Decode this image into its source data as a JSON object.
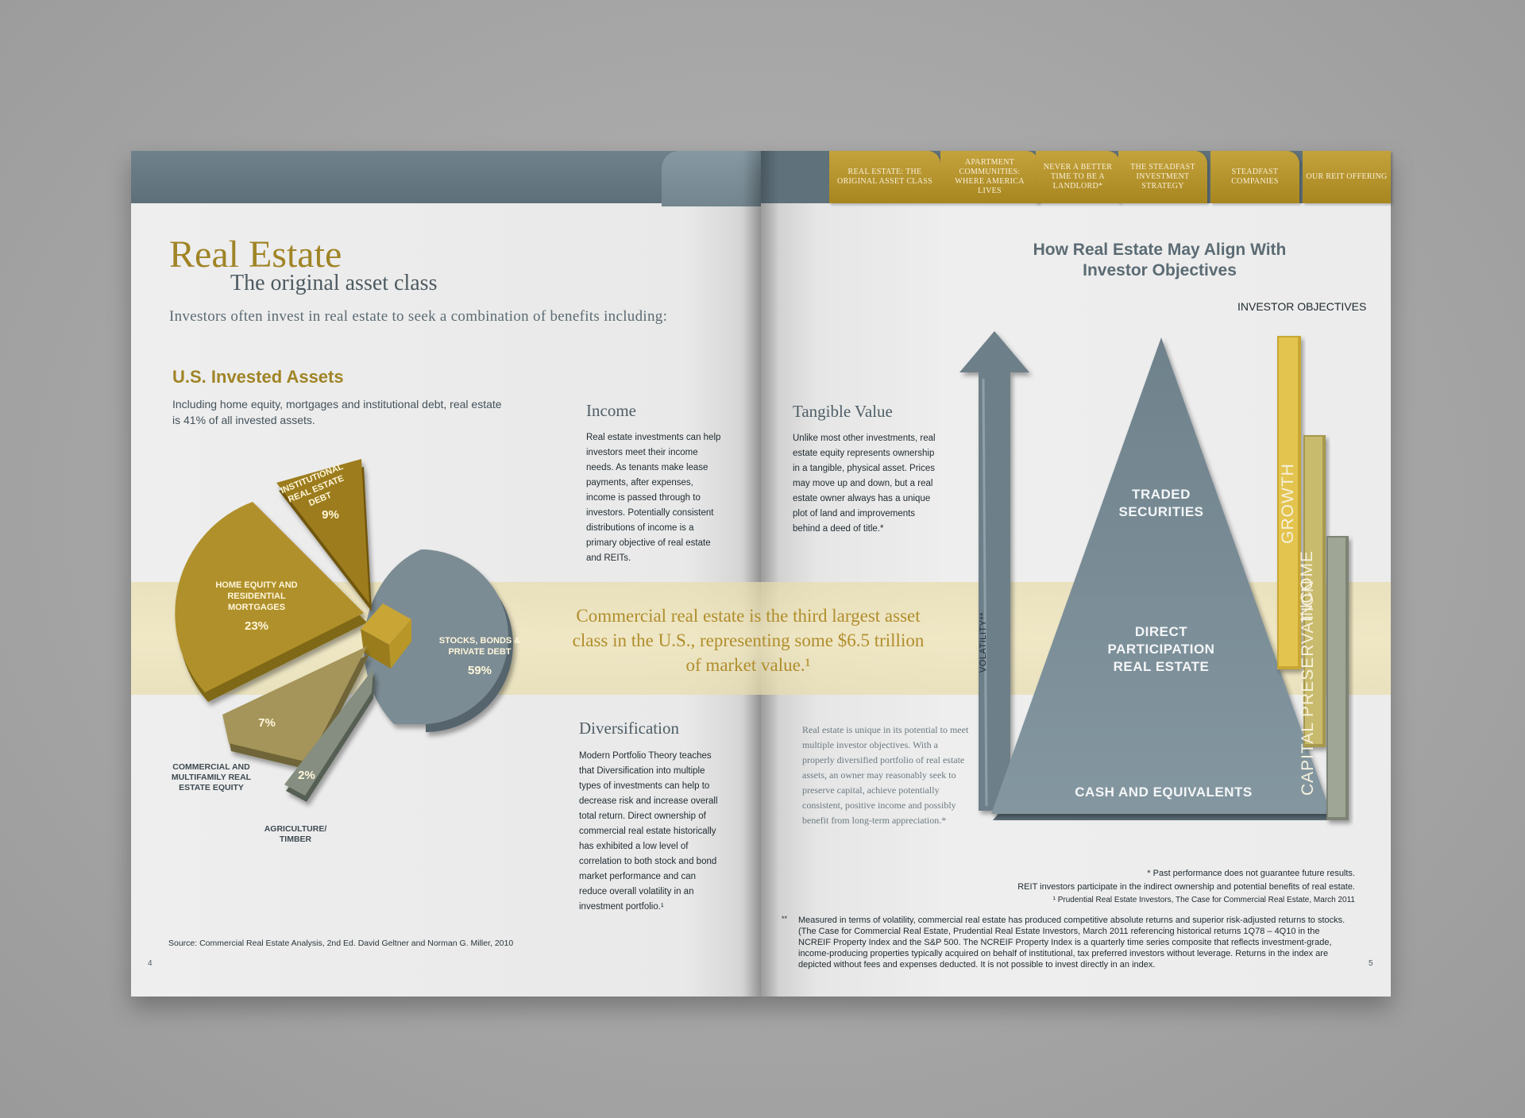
{
  "nav_tabs": [
    {
      "label": "REAL ESTATE: THE ORIGINAL ASSET CLASS"
    },
    {
      "label": "APARTMENT COMMUNITIES: WHERE AMERICA LIVES"
    },
    {
      "label": "NEVER A BETTER TIME TO BE A LANDLORD*"
    },
    {
      "label": "THE STEADFAST INVESTMENT STRATEGY"
    },
    {
      "label": "STEADFAST COMPANIES"
    },
    {
      "label": "OUR REIT OFFERING"
    }
  ],
  "left_page": {
    "title": "Real Estate",
    "subtitle": "The original asset class",
    "intro": "Investors often invest in real estate to seek a combination of benefits including:",
    "assets_heading": "U.S. Invested Assets",
    "assets_desc": "Including home equity, mortgages and institutional debt, real estate is 41% of all invested assets.",
    "source": "Source:  Commercial Real Estate Analysis, 2nd Ed. David Geltner and Norman G. Miller, 2010",
    "page_number": "4"
  },
  "sections": {
    "income": {
      "heading": "Income",
      "body": "Real estate investments can help investors meet their income needs.  As tenants make lease payments, after expenses, income is passed through to investors. Potentially consistent distributions of income is a primary objective of real estate and REITs."
    },
    "tangible": {
      "heading": "Tangible Value",
      "body": "Unlike most other investments, real estate equity represents ownership in a tangible, physical asset. Prices may move up and down, but a real estate owner always has a unique plot of land and improvements behind a deed of title.*"
    },
    "diversification": {
      "heading": "Diversification",
      "body": "Modern Portfolio Theory teaches that Diversification into multiple types of investments can help to decrease risk and increase overall total return. Direct ownership of commercial real estate historically has exhibited a low level of correlation to both stock and bond market performance and can reduce overall volatility in an investment portfolio.¹"
    }
  },
  "pull_quote": "Commercial real estate is the third largest asset class in the U.S., representing some $6.5 trillion of market value.¹",
  "pie": {
    "slices": [
      {
        "label": "STOCKS, BONDS & PRIVATE DEBT",
        "pct": "59%",
        "value": 59,
        "color": "#7c8c94"
      },
      {
        "label": "HOME EQUITY AND RESIDENTIAL MORTGAGES",
        "pct": "23%",
        "value": 23,
        "color": "#b0902b"
      },
      {
        "label": "INSTITUTIONAL REAL ESTATE DEBT",
        "pct": "9%",
        "value": 9,
        "color": "#9c7c1e"
      },
      {
        "label": "COMMERCIAL AND MULTIFAMILY REAL ESTATE EQUITY",
        "pct": "7%",
        "value": 7,
        "color": "#a5955a"
      },
      {
        "label": "AGRICULTURE/ TIMBER",
        "pct": "2%",
        "value": 2,
        "color": "#858e80"
      }
    ]
  },
  "right_page": {
    "title": "How Real Estate May Align With Investor Objectives",
    "objectives_label": "INVESTOR OBJECTIVES",
    "volatility_label": "VOLATILITY**",
    "tiers": [
      "TRADED SECURITIES",
      "DIRECT PARTICIPATION REAL ESTATE",
      "CASH AND EQUIVALENTS"
    ],
    "bars": [
      "GROWTH",
      "INCOME",
      "CAPITAL PRESERVATION"
    ],
    "paragraph": "Real estate is unique in its potential to meet multiple investor objectives. With a properly diversified portfolio of real estate assets, an owner may reasonably seek to preserve capital, achieve potentially consistent, positive income and possibly benefit from long-term appreciation.*",
    "fn1": "* Past performance does not guarantee future results.",
    "fn2": "REIT investors participate in the indirect ownership and potential benefits of real estate.",
    "fn3": "¹ Prudential Real Estate Investors, The Case for Commercial Real Estate, March 2011",
    "fn_mark": "**",
    "fn_long": "Measured in terms of volatility, commercial real estate has produced competitive absolute returns and superior risk-adjusted returns to stocks. (The Case for Commercial Real Estate,  Prudential Real Estate Investors, March 2011 referencing historical returns 1Q78 – 4Q10 in the NCREIF Property Index and the S&P 500. The NCREIF Property Index is a quarterly time series composite that reflects investment-grade, income-producing properties typically acquired on behalf of institutional, tax preferred investors without leverage. Returns in the index are depicted without fees and expenses deducted. It is not possible to invest directly in an index.",
    "page_number": "5"
  }
}
